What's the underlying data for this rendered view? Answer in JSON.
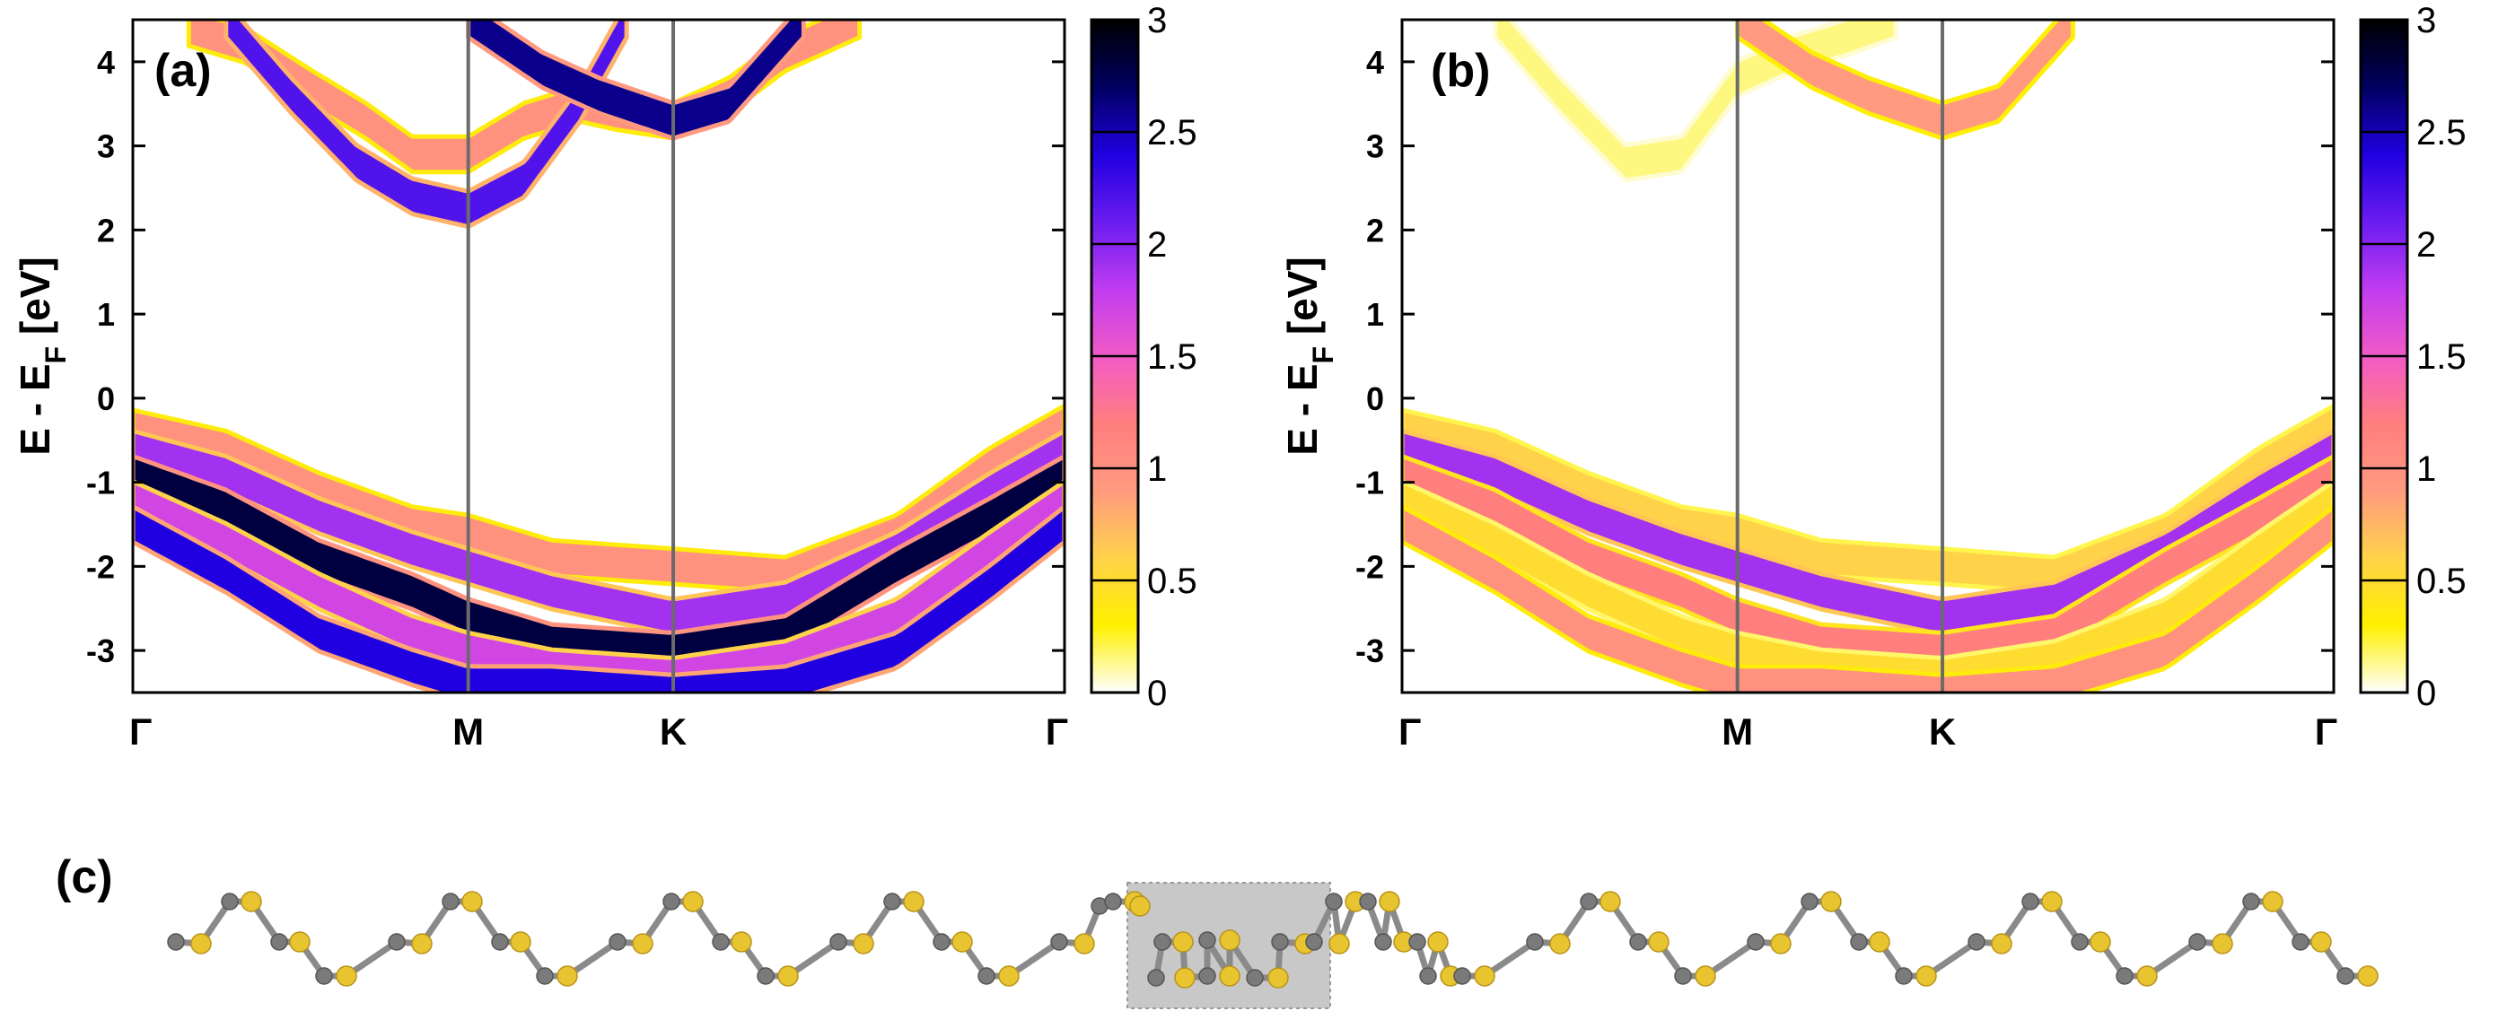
{
  "chart_data": [
    {
      "type": "heatmap",
      "panel_label": "(a)",
      "ylabel": "E - E",
      "ylabel_sub": "F",
      "ylabel_unit": " [eV]",
      "ylim": [
        -3.5,
        4.5
      ],
      "yticks": [
        "4",
        "3",
        "2",
        "1",
        "0",
        "-1",
        "-2",
        "-3"
      ],
      "ytick_values": [
        4,
        3,
        2,
        1,
        0,
        -1,
        -2,
        -3
      ],
      "kpath": [
        "Γ",
        "M",
        "K",
        "Γ"
      ],
      "kpath_positions": [
        0,
        0.36,
        0.58,
        1.0
      ],
      "colorbar": {
        "min": 0,
        "max": 3,
        "ticks": [
          "3",
          "2.5",
          "2",
          "1.5",
          "1",
          "0.5",
          "0"
        ],
        "tick_values": [
          3,
          2.5,
          2,
          1.5,
          1,
          0.5,
          0
        ]
      },
      "bands": [
        {
          "x": [
            0.06,
            0.12,
            0.19,
            0.25,
            0.3,
            0.36,
            0.42,
            0.48,
            0.52,
            0.58,
            0.64,
            0.7,
            0.78
          ],
          "e": [
            4.4,
            4.2,
            3.7,
            3.3,
            2.9,
            2.9,
            3.3,
            3.5,
            3.4,
            3.3,
            3.6,
            4.1,
            4.5
          ],
          "w": 1.0
        },
        {
          "x": [
            0.1,
            0.17,
            0.24,
            0.3,
            0.36,
            0.42,
            0.48,
            0.53
          ],
          "e": [
            4.5,
            3.6,
            2.8,
            2.4,
            2.25,
            2.6,
            3.5,
            4.5
          ],
          "w": 2.2
        },
        {
          "x": [
            0.36,
            0.44,
            0.5,
            0.58,
            0.64,
            0.72
          ],
          "e": [
            4.5,
            3.9,
            3.6,
            3.3,
            3.5,
            4.5
          ],
          "w": 2.6
        },
        {
          "x": [
            0,
            0.1,
            0.2,
            0.3,
            0.36,
            0.45,
            0.58,
            0.7,
            0.82,
            0.92,
            1.0
          ],
          "e": [
            -0.35,
            -0.6,
            -1.1,
            -1.5,
            -1.6,
            -1.9,
            -2.0,
            -2.1,
            -1.6,
            -0.8,
            -0.3
          ],
          "w": 1.0
        },
        {
          "x": [
            0,
            0.1,
            0.2,
            0.3,
            0.36,
            0.45,
            0.58,
            0.7,
            0.82,
            0.92,
            1.0
          ],
          "e": [
            -0.6,
            -0.9,
            -1.4,
            -1.8,
            -2.0,
            -2.3,
            -2.6,
            -2.4,
            -1.8,
            -1.1,
            -0.6
          ],
          "w": 1.9
        },
        {
          "x": [
            0,
            0.1,
            0.2,
            0.3,
            0.36,
            0.45,
            0.58,
            0.7,
            0.82,
            0.92,
            1.0
          ],
          "e": [
            -0.9,
            -1.3,
            -1.9,
            -2.3,
            -2.6,
            -2.9,
            -3.0,
            -2.8,
            -2.0,
            -1.4,
            -0.9
          ],
          "w": 2.8
        },
        {
          "x": [
            0,
            0.1,
            0.2,
            0.3,
            0.36,
            0.45,
            0.58,
            0.7,
            0.82,
            0.92,
            1.0
          ],
          "e": [
            -1.2,
            -1.7,
            -2.3,
            -2.8,
            -3.0,
            -3.2,
            -3.3,
            -3.1,
            -2.6,
            -1.8,
            -1.2
          ],
          "w": 1.7
        },
        {
          "x": [
            0,
            0.1,
            0.2,
            0.3,
            0.36,
            0.45,
            0.58,
            0.7,
            0.82,
            0.92,
            1.0
          ],
          "e": [
            -1.5,
            -2.1,
            -2.8,
            -3.2,
            -3.4,
            -3.4,
            -3.5,
            -3.4,
            -3.0,
            -2.2,
            -1.5
          ],
          "w": 2.4
        }
      ]
    },
    {
      "type": "heatmap",
      "panel_label": "(b)",
      "ylabel": "E - E",
      "ylabel_sub": "F",
      "ylabel_unit": " [eV]",
      "ylim": [
        -3.5,
        4.5
      ],
      "yticks": [
        "4",
        "3",
        "2",
        "1",
        "0",
        "-1",
        "-2",
        "-3"
      ],
      "ytick_values": [
        4,
        3,
        2,
        1,
        0,
        -1,
        -2,
        -3
      ],
      "kpath": [
        "Γ",
        "M",
        "K",
        "Γ"
      ],
      "kpath_positions": [
        0,
        0.36,
        0.58,
        1.0
      ],
      "colorbar": {
        "min": 0,
        "max": 3,
        "ticks": [
          "3",
          "2.5",
          "2",
          "1.5",
          "1",
          "0.5",
          "0"
        ],
        "tick_values": [
          3,
          2.5,
          2,
          1.5,
          1,
          0.5,
          0
        ]
      },
      "bands": [
        {
          "x": [
            0.1,
            0.17,
            0.24,
            0.3,
            0.36,
            0.42,
            0.48,
            0.53
          ],
          "e": [
            4.5,
            3.6,
            2.8,
            2.9,
            3.8,
            4.1,
            4.3,
            4.5
          ],
          "w": 0.15
        },
        {
          "x": [
            0.36,
            0.44,
            0.5,
            0.58,
            0.64,
            0.72
          ],
          "e": [
            4.5,
            3.9,
            3.6,
            3.3,
            3.5,
            4.5
          ],
          "w": 0.9
        },
        {
          "x": [
            0,
            0.1,
            0.2,
            0.3,
            0.36,
            0.45,
            0.58,
            0.7,
            0.82,
            0.92,
            1.0
          ],
          "e": [
            -0.35,
            -0.6,
            -1.1,
            -1.5,
            -1.6,
            -1.9,
            -2.0,
            -2.1,
            -1.6,
            -0.8,
            -0.3
          ],
          "w": 0.6
        },
        {
          "x": [
            0,
            0.1,
            0.2,
            0.3,
            0.36,
            0.45,
            0.58,
            0.7,
            0.82,
            0.92,
            1.0
          ],
          "e": [
            -0.6,
            -0.9,
            -1.4,
            -1.8,
            -2.0,
            -2.3,
            -2.6,
            -2.4,
            -1.8,
            -1.1,
            -0.6
          ],
          "w": 1.9
        },
        {
          "x": [
            0,
            0.1,
            0.2,
            0.3,
            0.36,
            0.45,
            0.58,
            0.7,
            0.82,
            0.92,
            1.0
          ],
          "e": [
            -0.9,
            -1.3,
            -1.9,
            -2.3,
            -2.6,
            -2.9,
            -3.0,
            -2.8,
            -2.0,
            -1.4,
            -0.9
          ],
          "w": 1.2
        },
        {
          "x": [
            0,
            0.1,
            0.2,
            0.3,
            0.36,
            0.45,
            0.58,
            0.7,
            0.82,
            0.92,
            1.0
          ],
          "e": [
            -1.2,
            -1.7,
            -2.3,
            -2.8,
            -3.0,
            -3.2,
            -3.3,
            -3.1,
            -2.6,
            -1.8,
            -1.2
          ],
          "w": 0.5
        },
        {
          "x": [
            0,
            0.1,
            0.2,
            0.3,
            0.36,
            0.45,
            0.58,
            0.7,
            0.82,
            0.92,
            1.0
          ],
          "e": [
            -1.5,
            -2.1,
            -2.8,
            -3.2,
            -3.4,
            -3.4,
            -3.5,
            -3.4,
            -3.0,
            -2.2,
            -1.5
          ],
          "w": 1.0
        }
      ]
    }
  ],
  "structure": {
    "panel_label": "(c)",
    "atom_count": 96,
    "colors": {
      "metal": "#7a7a7a",
      "chalcogen": "#e8c530",
      "bond": "#8a8a8a",
      "highlight_box": "#c8c8c8"
    }
  },
  "colormap": [
    "#ffffff",
    "#fff000",
    "#ffd24a",
    "#ff9a80",
    "#ff7e7e",
    "#f25ac8",
    "#c03cf0",
    "#6a1cf0",
    "#2000e0",
    "#000060",
    "#000000"
  ]
}
